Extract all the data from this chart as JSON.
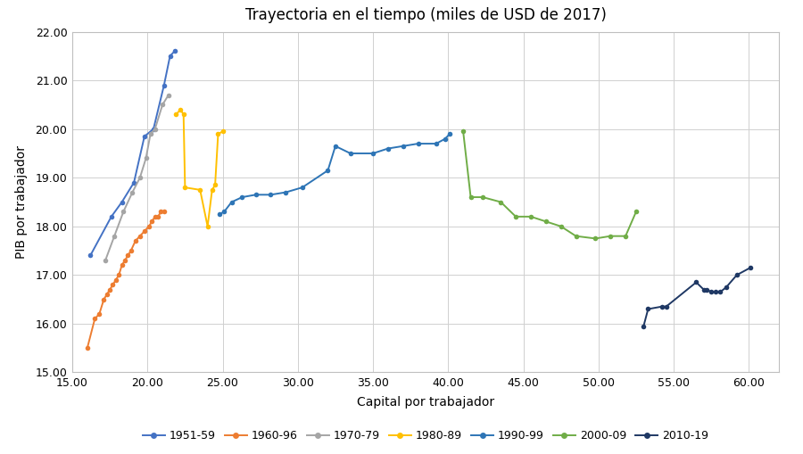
{
  "title": "Trayectoria en el tiempo (miles de USD de 2017)",
  "xlabel": "Capital por trabajador",
  "ylabel": "PIB por trabajador",
  "xlim": [
    15.0,
    62.0
  ],
  "ylim": [
    15.0,
    22.0
  ],
  "xticks": [
    15.0,
    20.0,
    25.0,
    30.0,
    35.0,
    40.0,
    45.0,
    50.0,
    55.0,
    60.0
  ],
  "yticks": [
    15.0,
    16.0,
    17.0,
    18.0,
    19.0,
    20.0,
    21.0,
    22.0
  ],
  "series": {
    "1951-59": {
      "color": "#4472C4",
      "capital": [
        16.2,
        17.6,
        18.3,
        19.1,
        19.8,
        20.4,
        21.1,
        21.5,
        21.8
      ],
      "pib": [
        17.4,
        18.2,
        18.5,
        18.9,
        19.85,
        20.0,
        20.9,
        21.5,
        21.6
      ]
    },
    "1960-96": {
      "color": "#ED7D31",
      "capital": [
        16.0,
        16.5,
        16.8,
        17.1,
        17.3,
        17.5,
        17.7,
        17.9,
        18.1,
        18.3,
        18.5,
        18.7,
        18.9,
        19.2,
        19.5,
        19.8,
        20.1,
        20.3,
        20.5,
        20.7,
        20.9,
        21.1
      ],
      "pib": [
        15.5,
        16.1,
        16.2,
        16.5,
        16.6,
        16.7,
        16.8,
        16.9,
        17.0,
        17.2,
        17.3,
        17.4,
        17.5,
        17.7,
        17.8,
        17.9,
        18.0,
        18.1,
        18.2,
        18.2,
        18.3,
        18.3
      ]
    },
    "1970-79": {
      "color": "#A5A5A5",
      "capital": [
        17.2,
        17.8,
        18.4,
        19.0,
        19.5,
        19.9,
        20.2,
        20.5,
        21.0,
        21.4
      ],
      "pib": [
        17.3,
        17.8,
        18.3,
        18.7,
        19.0,
        19.4,
        19.9,
        20.0,
        20.5,
        20.7
      ]
    },
    "1980-89": {
      "color": "#FFC000",
      "capital": [
        21.9,
        22.2,
        22.4,
        22.5,
        23.5,
        24.0,
        24.3,
        24.5,
        24.7,
        25.0
      ],
      "pib": [
        20.3,
        20.4,
        20.3,
        18.8,
        18.75,
        18.0,
        18.75,
        18.85,
        19.9,
        19.95
      ]
    },
    "1990-99": {
      "color": "#2E75B6",
      "capital": [
        24.8,
        25.1,
        25.6,
        26.3,
        27.2,
        28.2,
        29.2,
        30.3,
        32.0,
        32.5,
        33.5,
        35.0,
        36.0,
        37.0,
        38.0,
        39.2,
        39.8,
        40.1
      ],
      "pib": [
        18.25,
        18.3,
        18.5,
        18.6,
        18.65,
        18.65,
        18.7,
        18.8,
        19.15,
        19.65,
        19.5,
        19.5,
        19.6,
        19.65,
        19.7,
        19.7,
        19.8,
        19.9
      ]
    },
    "2000-09": {
      "color": "#70AD47",
      "capital": [
        41.0,
        41.5,
        42.3,
        43.5,
        44.5,
        45.5,
        46.5,
        47.5,
        48.5,
        49.8,
        50.8,
        51.8,
        52.5
      ],
      "pib": [
        19.95,
        18.6,
        18.6,
        18.5,
        18.2,
        18.2,
        18.1,
        18.0,
        17.8,
        17.75,
        17.8,
        17.8,
        18.3
      ]
    },
    "2010-19": {
      "color": "#1F3864",
      "capital": [
        53.0,
        53.3,
        54.2,
        54.5,
        56.5,
        57.0,
        57.2,
        57.5,
        57.8,
        58.1,
        58.5,
        59.2,
        60.1
      ],
      "pib": [
        15.95,
        16.3,
        16.35,
        16.35,
        16.85,
        16.7,
        16.7,
        16.65,
        16.65,
        16.65,
        16.75,
        17.0,
        17.15
      ]
    }
  },
  "legend_labels": [
    "1951-59",
    "1960-96",
    "1970-79",
    "1980-89",
    "1990-99",
    "2000-09",
    "2010-19"
  ],
  "legend_colors": [
    "#4472C4",
    "#ED7D31",
    "#A5A5A5",
    "#FFC000",
    "#2E75B6",
    "#70AD47",
    "#1F3864"
  ],
  "background_color": "#FFFFFF",
  "grid_color": "#D0D0D0"
}
